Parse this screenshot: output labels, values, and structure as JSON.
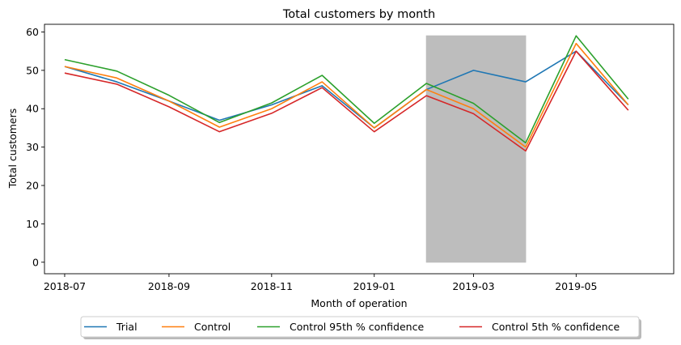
{
  "chart_data": {
    "type": "line",
    "title": "Total customers by month",
    "xlabel": "Month of operation",
    "ylabel": "Total customers",
    "x": [
      "2018-07",
      "2018-08",
      "2018-09",
      "2018-10",
      "2018-11",
      "2018-12",
      "2019-01",
      "2019-02",
      "2019-03",
      "2019-04",
      "2019-05",
      "2019-06"
    ],
    "x_tick_labels": [
      "2018-07",
      "2018-09",
      "2018-11",
      "2019-01",
      "2019-03",
      "2019-05"
    ],
    "y_ticks": [
      0,
      10,
      20,
      30,
      40,
      50,
      60
    ],
    "xlim": [
      "2018-06-19",
      "2019-06-28"
    ],
    "ylim": [
      -3,
      62
    ],
    "grid": false,
    "legend_position": "bottom-center, below plot",
    "shaded_region": {
      "x_start": "2019-02",
      "x_end": "2019-04",
      "y_range": [
        0,
        59
      ],
      "color": "#bdbdbd"
    },
    "series": [
      {
        "name": "Trial",
        "color": "#1f77b4",
        "values": [
          51,
          47,
          42,
          37,
          41,
          46,
          35,
          45,
          50,
          47,
          55,
          41
        ]
      },
      {
        "name": "Control",
        "color": "#ff7f0e",
        "values": [
          51,
          48,
          42,
          35.2,
          40,
          47,
          35,
          45,
          40,
          30,
          57,
          41
        ]
      },
      {
        "name": "Control 95th % confidence",
        "color": "#2ca02c",
        "values": [
          52.8,
          49.8,
          43.5,
          36.4,
          41.5,
          48.7,
          36.2,
          46.6,
          41.4,
          31.1,
          59,
          42.5
        ]
      },
      {
        "name": "Control 5th % confidence",
        "color": "#d62728",
        "values": [
          49.3,
          46.4,
          40.5,
          34,
          38.8,
          45.5,
          34,
          43.4,
          38.7,
          29,
          55,
          39.6
        ]
      }
    ]
  }
}
